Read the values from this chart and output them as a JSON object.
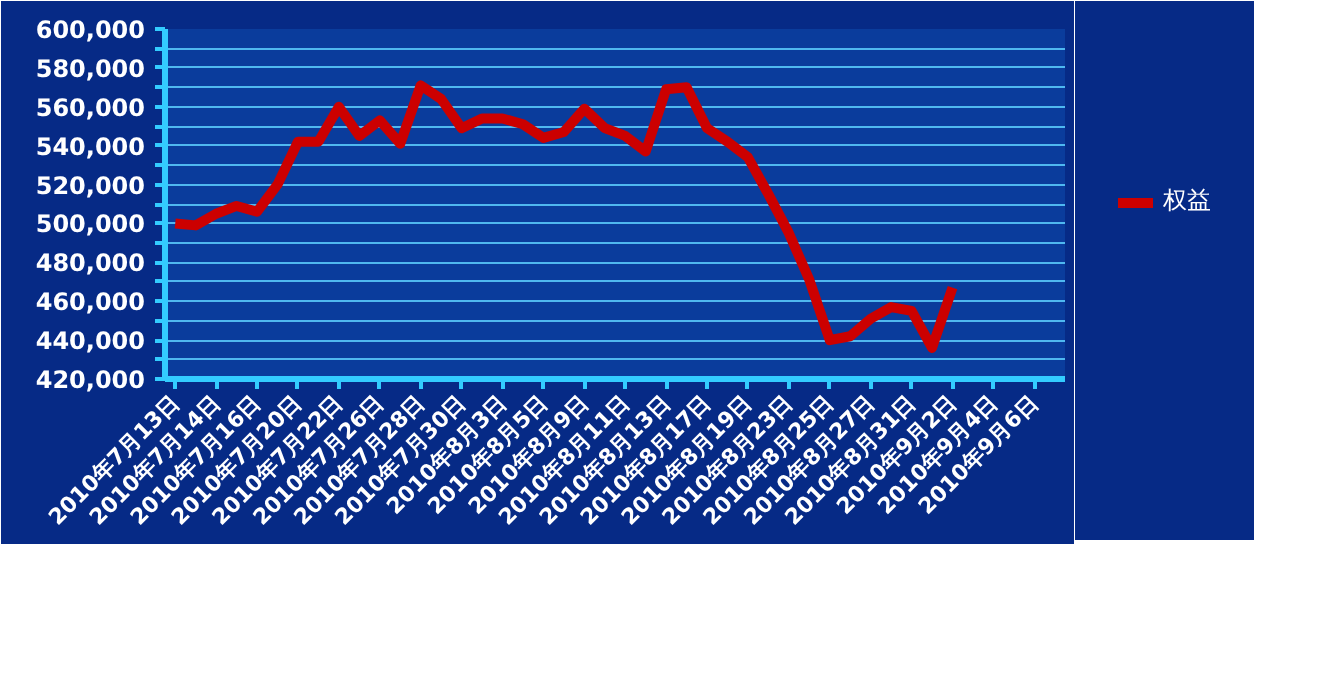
{
  "chart_data": {
    "type": "line",
    "categories": [
      "2010年7月13日",
      null,
      "2010年7月14日",
      null,
      "2010年7月16日",
      null,
      "2010年7月20日",
      null,
      "2010年7月22日",
      null,
      "2010年7月26日",
      null,
      "2010年7月28日",
      null,
      "2010年7月30日",
      null,
      "2010年8月3日",
      null,
      "2010年8月5日",
      null,
      "2010年8月9日",
      null,
      "2010年8月11日",
      null,
      "2010年8月13日",
      null,
      "2010年8月17日",
      null,
      "2010年8月19日",
      null,
      "2010年8月23日",
      null,
      "2010年8月25日",
      null,
      "2010年8月27日",
      null,
      "2010年8月31日",
      null,
      "2010年9月2日",
      null,
      "2010年9月4日",
      null,
      "2010年9月6日",
      null
    ],
    "series": [
      {
        "name": "权益",
        "color": "#cc0000",
        "values": [
          500000,
          499000,
          505000,
          509000,
          506000,
          520000,
          542000,
          542000,
          560000,
          545000,
          553000,
          541000,
          571000,
          564000,
          549000,
          554000,
          554000,
          551000,
          544000,
          547000,
          559000,
          549000,
          545000,
          537000,
          569000,
          570000,
          549000,
          542000,
          534000,
          515000,
          495000,
          471000,
          440000,
          442000,
          451000,
          457000,
          455000,
          436000,
          467000,
          null,
          null,
          null,
          null,
          null
        ]
      }
    ],
    "ylim": [
      420000,
      600000
    ],
    "yticks": [
      {
        "value": 420000,
        "label": "420,000"
      },
      {
        "value": 430000,
        "label": null
      },
      {
        "value": 440000,
        "label": "440,000"
      },
      {
        "value": 450000,
        "label": null
      },
      {
        "value": 460000,
        "label": "460,000"
      },
      {
        "value": 470000,
        "label": null
      },
      {
        "value": 480000,
        "label": "480,000"
      },
      {
        "value": 490000,
        "label": null
      },
      {
        "value": 500000,
        "label": "500,000"
      },
      {
        "value": 510000,
        "label": null
      },
      {
        "value": 520000,
        "label": "520,000"
      },
      {
        "value": 530000,
        "label": null
      },
      {
        "value": 540000,
        "label": "540,000"
      },
      {
        "value": 550000,
        "label": null
      },
      {
        "value": 560000,
        "label": "560,000"
      },
      {
        "value": 570000,
        "label": null
      },
      {
        "value": 580000,
        "label": "580,000"
      },
      {
        "value": 590000,
        "label": null
      },
      {
        "value": 600000,
        "label": "600,000"
      }
    ],
    "grid": "y",
    "legend": "right",
    "marker": "none",
    "line_style": "solid"
  }
}
